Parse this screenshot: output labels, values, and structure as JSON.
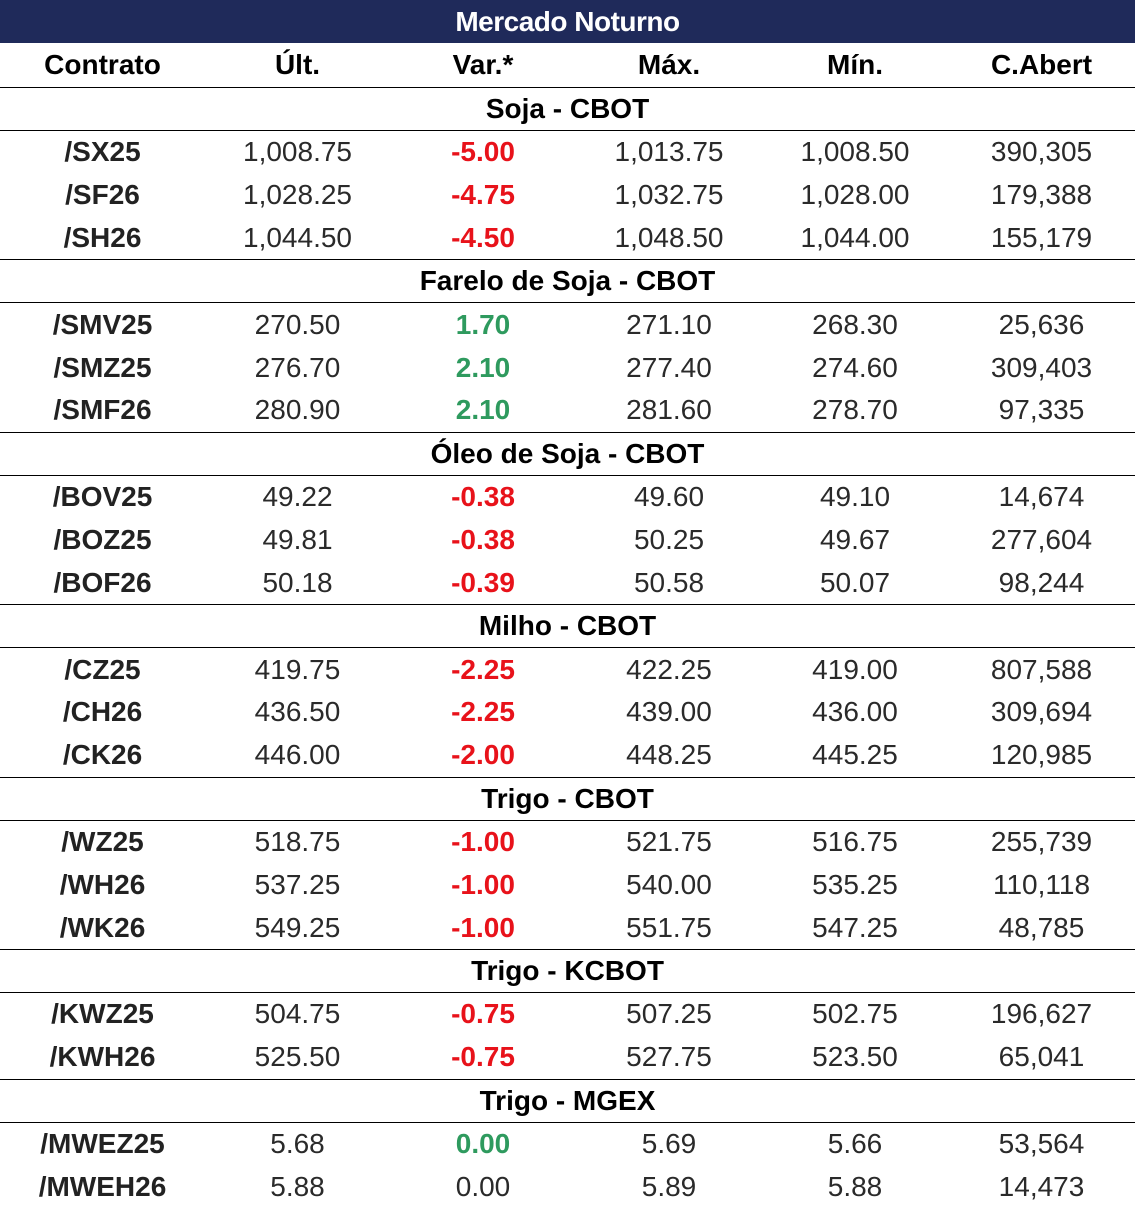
{
  "title": "Mercado Noturno",
  "colors": {
    "title_bg": "#1f2a5a",
    "negative": "#e8121a",
    "positive": "#2e9a5e"
  },
  "columns": [
    "Contrato",
    "Últ.",
    "Var.*",
    "Máx.",
    "Mín.",
    "C.Abert"
  ],
  "sections": [
    {
      "name": "Soja - CBOT",
      "rows": [
        {
          "contract": "/SX25",
          "last": "1,008.75",
          "var": "-5.00",
          "trend": "neg",
          "high": "1,013.75",
          "low": "1,008.50",
          "oi": "390,305"
        },
        {
          "contract": "/SF26",
          "last": "1,028.25",
          "var": "-4.75",
          "trend": "neg",
          "high": "1,032.75",
          "low": "1,028.00",
          "oi": "179,388"
        },
        {
          "contract": "/SH26",
          "last": "1,044.50",
          "var": "-4.50",
          "trend": "neg",
          "high": "1,048.50",
          "low": "1,044.00",
          "oi": "155,179"
        }
      ]
    },
    {
      "name": "Farelo de Soja - CBOT",
      "rows": [
        {
          "contract": "/SMV25",
          "last": "270.50",
          "var": "1.70",
          "trend": "pos",
          "high": "271.10",
          "low": "268.30",
          "oi": "25,636"
        },
        {
          "contract": "/SMZ25",
          "last": "276.70",
          "var": "2.10",
          "trend": "pos",
          "high": "277.40",
          "low": "274.60",
          "oi": "309,403"
        },
        {
          "contract": "/SMF26",
          "last": "280.90",
          "var": "2.10",
          "trend": "pos",
          "high": "281.60",
          "low": "278.70",
          "oi": "97,335"
        }
      ]
    },
    {
      "name": "Óleo de Soja - CBOT",
      "rows": [
        {
          "contract": "/BOV25",
          "last": "49.22",
          "var": "-0.38",
          "trend": "neg",
          "high": "49.60",
          "low": "49.10",
          "oi": "14,674"
        },
        {
          "contract": "/BOZ25",
          "last": "49.81",
          "var": "-0.38",
          "trend": "neg",
          "high": "50.25",
          "low": "49.67",
          "oi": "277,604"
        },
        {
          "contract": "/BOF26",
          "last": "50.18",
          "var": "-0.39",
          "trend": "neg",
          "high": "50.58",
          "low": "50.07",
          "oi": "98,244"
        }
      ]
    },
    {
      "name": "Milho - CBOT",
      "rows": [
        {
          "contract": "/CZ25",
          "last": "419.75",
          "var": "-2.25",
          "trend": "neg",
          "high": "422.25",
          "low": "419.00",
          "oi": "807,588"
        },
        {
          "contract": "/CH26",
          "last": "436.50",
          "var": "-2.25",
          "trend": "neg",
          "high": "439.00",
          "low": "436.00",
          "oi": "309,694"
        },
        {
          "contract": "/CK26",
          "last": "446.00",
          "var": "-2.00",
          "trend": "neg",
          "high": "448.25",
          "low": "445.25",
          "oi": "120,985"
        }
      ]
    },
    {
      "name": "Trigo - CBOT",
      "rows": [
        {
          "contract": "/WZ25",
          "last": "518.75",
          "var": "-1.00",
          "trend": "neg",
          "high": "521.75",
          "low": "516.75",
          "oi": "255,739"
        },
        {
          "contract": "/WH26",
          "last": "537.25",
          "var": "-1.00",
          "trend": "neg",
          "high": "540.00",
          "low": "535.25",
          "oi": "110,118"
        },
        {
          "contract": "/WK26",
          "last": "549.25",
          "var": "-1.00",
          "trend": "neg",
          "high": "551.75",
          "low": "547.25",
          "oi": "48,785"
        }
      ]
    },
    {
      "name": "Trigo - KCBOT",
      "rows": [
        {
          "contract": "/KWZ25",
          "last": "504.75",
          "var": "-0.75",
          "trend": "neg",
          "high": "507.25",
          "low": "502.75",
          "oi": "196,627"
        },
        {
          "contract": "/KWH26",
          "last": "525.50",
          "var": "-0.75",
          "trend": "neg",
          "high": "527.75",
          "low": "523.50",
          "oi": "65,041"
        }
      ]
    },
    {
      "name": "Trigo - MGEX",
      "rows": [
        {
          "contract": "/MWEZ25",
          "last": "5.68",
          "var": "0.00",
          "trend": "pos",
          "high": "5.69",
          "low": "5.66",
          "oi": "53,564"
        },
        {
          "contract": "/MWEH26",
          "last": "5.88",
          "var": "0.00",
          "trend": "flat",
          "high": "5.89",
          "low": "5.88",
          "oi": "14,473"
        }
      ]
    }
  ]
}
